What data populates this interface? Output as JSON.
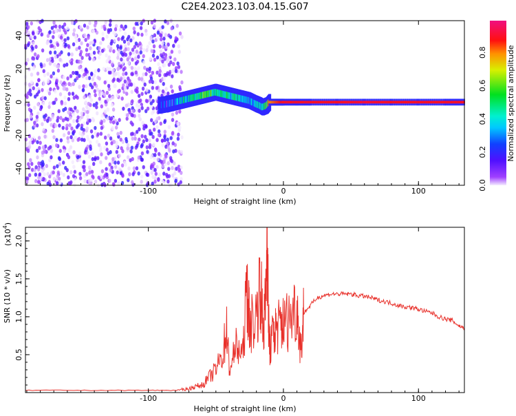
{
  "title": "C2E4.2023.103.04.15.G07",
  "chart_data": [
    {
      "type": "heatmap",
      "name": "spectrogram",
      "xlabel": "Height of straight line (km)",
      "ylabel": "Frequency (Hz)",
      "xlim": [
        -191,
        134
      ],
      "ylim": [
        -50,
        49
      ],
      "xticks": [
        -100,
        0,
        100
      ],
      "xtick_labels": [
        "-100",
        "0",
        "100"
      ],
      "yticks": [
        40,
        20,
        0,
        -20,
        -40
      ],
      "ytick_labels": [
        "40",
        "20",
        "0",
        "-20",
        "-40"
      ],
      "noise_region_x": [
        -191,
        -75
      ],
      "trace": {
        "x": [
          -92,
          -85,
          -80,
          -75,
          -70,
          -65,
          -60,
          -55,
          -50,
          -45,
          -40,
          -35,
          -30,
          -25,
          -20,
          -17,
          -15,
          -12,
          -10,
          -5,
          0,
          10,
          20,
          40,
          60,
          80,
          100,
          120,
          134
        ],
        "freq": [
          -2,
          -1,
          0,
          1,
          2,
          3,
          4,
          5,
          6,
          5,
          4,
          3,
          2,
          1,
          -1,
          -2,
          -3,
          -2,
          0,
          0,
          0,
          0,
          0,
          0,
          0,
          0,
          0,
          0,
          0
        ],
        "amplitude": [
          0.15,
          0.2,
          0.25,
          0.35,
          0.4,
          0.45,
          0.5,
          0.55,
          0.45,
          0.5,
          0.4,
          0.45,
          0.4,
          0.3,
          0.35,
          0.4,
          0.45,
          0.5,
          0.8,
          0.85,
          0.9,
          0.9,
          0.9,
          0.9,
          0.92,
          0.9,
          0.9,
          0.9,
          0.9
        ]
      },
      "colorbar": {
        "label": "Normalized spectral amplitude",
        "range": [
          0,
          1
        ],
        "ticks": [
          0.0,
          0.2,
          0.4,
          0.6,
          0.8
        ],
        "tick_labels": [
          "0.0",
          "0.2",
          "0.4",
          "0.6",
          "0.8"
        ]
      }
    },
    {
      "type": "line",
      "name": "snr",
      "xlabel": "Height of straight line (km)",
      "ylabel": "SNR (10 * v/v)",
      "yscale_label": "(x10",
      "yscale_exp": "4",
      "xlim": [
        -191,
        134
      ],
      "ylim": [
        0,
        2.18
      ],
      "xticks": [
        -100,
        0,
        100
      ],
      "xtick_labels": [
        "-100",
        "0",
        "100"
      ],
      "yticks": [
        2.0,
        1.5,
        1.0,
        0.5
      ],
      "ytick_labels": [
        "2.0",
        "1.5",
        "1.0",
        "0.5"
      ],
      "color": "#e8302a",
      "series": [
        {
          "name": "SNR",
          "x": [
            -191,
            -160,
            -130,
            -100,
            -80,
            -75,
            -70,
            -65,
            -60,
            -55,
            -50,
            -45,
            -42,
            -40,
            -35,
            -30,
            -27,
            -25,
            -20,
            -17,
            -15,
            -13,
            -12,
            -11,
            -10,
            -7,
            -5,
            -2,
            0,
            5,
            10,
            13,
            15,
            20,
            25,
            30,
            35,
            40,
            45,
            50,
            55,
            60,
            65,
            70,
            75,
            80,
            85,
            90,
            95,
            100,
            105,
            110,
            115,
            120,
            125,
            130,
            134
          ],
          "y": [
            0.03,
            0.03,
            0.03,
            0.03,
            0.03,
            0.04,
            0.05,
            0.08,
            0.1,
            0.2,
            0.3,
            0.5,
            0.85,
            0.3,
            0.6,
            0.5,
            1.4,
            0.9,
            1.0,
            1.5,
            0.8,
            1.2,
            2.18,
            0.9,
            0.6,
            0.8,
            0.85,
            0.9,
            0.9,
            1.0,
            1.15,
            0.55,
            1.05,
            1.15,
            1.25,
            1.28,
            1.3,
            1.3,
            1.3,
            1.3,
            1.28,
            1.27,
            1.25,
            1.22,
            1.2,
            1.18,
            1.15,
            1.13,
            1.12,
            1.1,
            1.07,
            1.05,
            1.0,
            0.97,
            0.95,
            0.88,
            0.85
          ]
        }
      ]
    }
  ]
}
